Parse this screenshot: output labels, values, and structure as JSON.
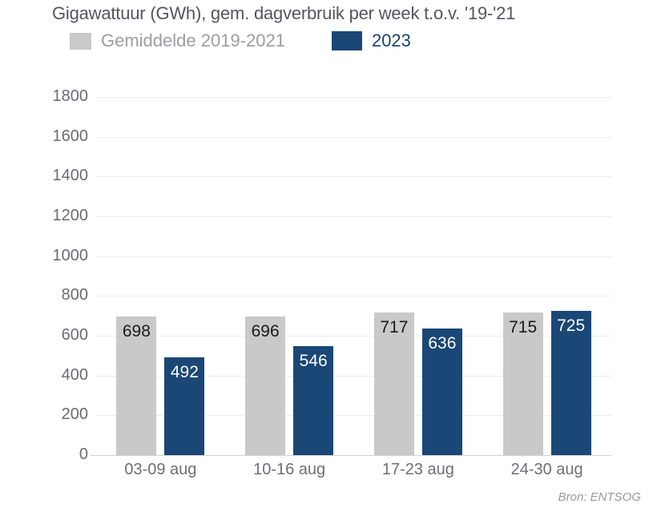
{
  "title": "Gigawattuur (GWh), gem. dagverbruik per week t.o.v. '19-'21",
  "legend": {
    "average": {
      "label": "Gemiddelde 2019-2021",
      "swatch_color": "#c9c9c9",
      "text_color": "#9c9ca2"
    },
    "current": {
      "label": "2023",
      "swatch_color": "#1a4775",
      "text_color": "#1c4270"
    }
  },
  "source": "Bron: ENTSOG",
  "chart_data": {
    "type": "bar",
    "title": "Gigawattuur (GWh), gem. dagverbruik per week t.o.v. '19-'21",
    "categories": [
      "03-09 aug",
      "10-16 aug",
      "17-23 aug",
      "24-30 aug"
    ],
    "series": [
      {
        "name": "Gemiddelde 2019-2021",
        "color": "#c9c9c9",
        "label_color": "#1a1a1a",
        "values": [
          698,
          696,
          717,
          715
        ]
      },
      {
        "name": "2023",
        "color": "#1a4775",
        "label_color": "#ffffff",
        "values": [
          492,
          546,
          636,
          725
        ]
      }
    ],
    "xlabel": "",
    "ylabel": "",
    "ylim": [
      0,
      1800
    ],
    "ytick_step": 200,
    "grid": true,
    "legend_position": "top",
    "value_labels": "inside-top"
  }
}
